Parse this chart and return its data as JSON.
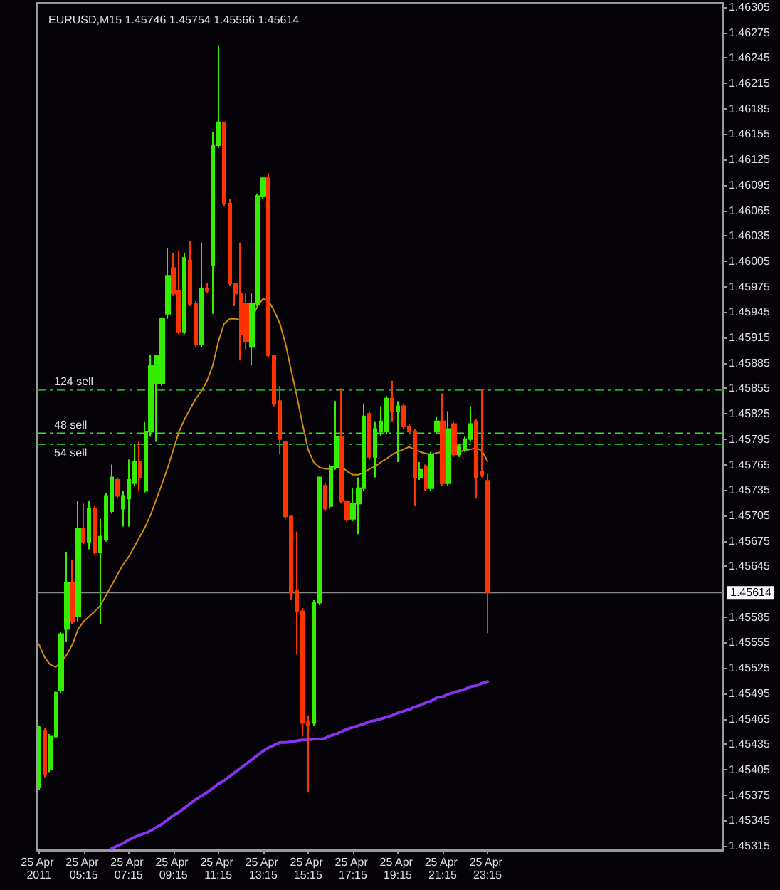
{
  "chart_data": {
    "type": "candlestick",
    "title": "EURUSD,M15 1.45746 1.45754 1.45566 1.45614",
    "x": [
      "2011-04-25T03:15",
      "2011-04-25T03:30",
      "2011-04-25T03:45",
      "2011-04-25T04:00",
      "2011-04-25T04:15",
      "2011-04-25T04:30",
      "2011-04-25T04:45",
      "2011-04-25T05:00",
      "2011-04-25T05:15",
      "2011-04-25T05:30",
      "2011-04-25T05:45",
      "2011-04-25T06:00",
      "2011-04-25T06:15",
      "2011-04-25T06:30",
      "2011-04-25T06:45",
      "2011-04-25T07:00",
      "2011-04-25T07:15",
      "2011-04-25T07:30",
      "2011-04-25T07:45",
      "2011-04-25T08:00",
      "2011-04-25T08:15",
      "2011-04-25T08:30",
      "2011-04-25T08:45",
      "2011-04-25T09:00",
      "2011-04-25T09:15",
      "2011-04-25T09:30",
      "2011-04-25T09:45",
      "2011-04-25T10:00",
      "2011-04-25T10:15",
      "2011-04-25T10:30",
      "2011-04-25T10:45",
      "2011-04-25T11:00",
      "2011-04-25T11:15",
      "2011-04-25T11:30",
      "2011-04-25T11:45",
      "2011-04-25T12:00",
      "2011-04-25T12:15",
      "2011-04-25T12:30",
      "2011-04-25T12:45",
      "2011-04-25T13:00",
      "2011-04-25T13:15",
      "2011-04-25T13:30",
      "2011-04-25T13:45",
      "2011-04-25T14:00",
      "2011-04-25T14:15",
      "2011-04-25T14:30",
      "2011-04-25T14:45",
      "2011-04-25T15:00",
      "2011-04-25T15:15",
      "2011-04-25T15:30",
      "2011-04-25T15:45",
      "2011-04-25T16:00",
      "2011-04-25T16:15",
      "2011-04-25T16:30",
      "2011-04-25T16:45",
      "2011-04-25T17:00",
      "2011-04-25T17:15",
      "2011-04-25T17:30",
      "2011-04-25T17:45",
      "2011-04-25T18:00",
      "2011-04-25T18:15",
      "2011-04-25T18:30",
      "2011-04-25T18:45",
      "2011-04-25T19:00",
      "2011-04-25T19:15",
      "2011-04-25T19:30",
      "2011-04-25T19:45",
      "2011-04-25T20:00",
      "2011-04-25T20:15",
      "2011-04-25T20:30",
      "2011-04-25T20:45",
      "2011-04-25T21:00",
      "2011-04-25T21:15",
      "2011-04-25T21:30",
      "2011-04-25T21:45",
      "2011-04-25T22:00",
      "2011-04-25T22:15",
      "2011-04-25T22:30",
      "2011-04-25T22:45",
      "2011-04-25T23:00",
      "2011-04-25T23:15"
    ],
    "ohlc": [
      [
        1.45384,
        1.45457,
        1.45381,
        1.45455
      ],
      [
        1.45451,
        1.45454,
        1.45396,
        1.45399
      ],
      [
        1.45405,
        1.45447,
        1.45402,
        1.45444
      ],
      [
        1.45444,
        1.45497,
        1.45443,
        1.45496
      ],
      [
        1.45499,
        1.45568,
        1.45496,
        1.45565
      ],
      [
        1.45571,
        1.45662,
        1.45556,
        1.45626
      ],
      [
        1.45626,
        1.45653,
        1.45577,
        1.4558
      ],
      [
        1.45586,
        1.45722,
        1.4558,
        1.45689
      ],
      [
        1.45689,
        1.45719,
        1.45671,
        1.45674
      ],
      [
        1.45674,
        1.45722,
        1.45665,
        1.45713
      ],
      [
        1.45713,
        1.45716,
        1.45659,
        1.45662
      ],
      [
        1.45662,
        1.45701,
        1.45577,
        1.4568
      ],
      [
        1.45677,
        1.45731,
        1.45674,
        1.45728
      ],
      [
        1.4571,
        1.45765,
        1.45707,
        1.4575
      ],
      [
        1.45747,
        1.4575,
        1.45725,
        1.45728
      ],
      [
        1.45713,
        1.45734,
        1.45692,
        1.45728
      ],
      [
        1.45725,
        1.45771,
        1.45692,
        1.45747
      ],
      [
        1.45743,
        1.45789,
        1.4574,
        1.45768
      ],
      [
        1.45768,
        1.45792,
        1.45734,
        1.4575
      ],
      [
        1.45734,
        1.45816,
        1.45731,
        1.45804
      ],
      [
        1.45804,
        1.45894,
        1.45798,
        1.45882
      ],
      [
        1.45861,
        1.45894,
        1.45792,
        1.45894
      ],
      [
        1.45861,
        1.45937,
        1.45858,
        1.45937
      ],
      [
        1.45943,
        1.46021,
        1.45937,
        1.45988
      ],
      [
        1.45997,
        1.46015,
        1.45964,
        1.45967
      ],
      [
        1.4597,
        1.46018,
        1.45919,
        1.45922
      ],
      [
        1.45922,
        1.46015,
        1.45919,
        1.46009
      ],
      [
        1.46006,
        1.46029,
        1.45952,
        1.45955
      ],
      [
        1.45955,
        1.45958,
        1.45904,
        1.45907
      ],
      [
        1.45907,
        1.46027,
        1.45904,
        1.45973
      ],
      [
        1.45973,
        1.45979,
        1.45967,
        1.4597
      ],
      [
        1.46,
        1.46157,
        1.45943,
        1.46142
      ],
      [
        1.46142,
        1.4626,
        1.46139,
        1.46169
      ],
      [
        1.46169,
        1.46169,
        1.4607,
        1.46073
      ],
      [
        1.46073,
        1.46079,
        1.45976,
        1.45979
      ],
      [
        1.45979,
        1.45979,
        1.45952,
        1.45967
      ],
      [
        1.45967,
        1.46027,
        1.45888,
        1.45919
      ],
      [
        1.45955,
        1.45967,
        1.45901,
        1.4591
      ],
      [
        1.45904,
        1.45967,
        1.45882,
        1.45955
      ],
      [
        1.45955,
        1.46085,
        1.45952,
        1.46082
      ],
      [
        1.46082,
        1.46103,
        1.46079,
        1.46103
      ],
      [
        1.46103,
        1.46109,
        1.45891,
        1.45894
      ],
      [
        1.45894,
        1.45894,
        1.45834,
        1.45837
      ],
      [
        1.4584,
        1.45858,
        1.45777,
        1.45795
      ],
      [
        1.45792,
        1.45792,
        1.45701,
        1.45704
      ],
      [
        1.45704,
        1.45704,
        1.45605,
        1.45614
      ],
      [
        1.45617,
        1.45686,
        1.45541,
        1.45592
      ],
      [
        1.45592,
        1.45596,
        1.45444,
        1.4546
      ],
      [
        1.45461,
        1.45469,
        1.45378,
        1.45458
      ],
      [
        1.4546,
        1.45605,
        1.45457,
        1.45602
      ],
      [
        1.45602,
        1.4575,
        1.45599,
        1.4575
      ],
      [
        1.4574,
        1.45743,
        1.4571,
        1.45713
      ],
      [
        1.45716,
        1.45765,
        1.45713,
        1.45762
      ],
      [
        1.45762,
        1.4584,
        1.45759,
        1.45798
      ],
      [
        1.45798,
        1.45855,
        1.45719,
        1.45722
      ],
      [
        1.45722,
        1.45722,
        1.45698,
        1.457
      ],
      [
        1.45701,
        1.45737,
        1.45698,
        1.45719
      ],
      [
        1.45719,
        1.4575,
        1.45683,
        1.45737
      ],
      [
        1.45737,
        1.45837,
        1.45734,
        1.45822
      ],
      [
        1.45825,
        1.45828,
        1.45771,
        1.45774
      ],
      [
        1.45774,
        1.45816,
        1.4575,
        1.45807
      ],
      [
        1.45804,
        1.45834,
        1.45798,
        1.45816
      ],
      [
        1.45804,
        1.45846,
        1.45801,
        1.45843
      ],
      [
        1.45843,
        1.45864,
        1.45816,
        1.45828
      ],
      [
        1.45828,
        1.4584,
        1.45768,
        1.45834
      ],
      [
        1.45834,
        1.45837,
        1.45807,
        1.4581
      ],
      [
        1.4581,
        1.45813,
        1.45801,
        1.45804
      ],
      [
        1.45804,
        1.45807,
        1.45716,
        1.4575
      ],
      [
        1.4575,
        1.45768,
        1.45747,
        1.45759
      ],
      [
        1.45762,
        1.45765,
        1.45734,
        1.45737
      ],
      [
        1.45737,
        1.4578,
        1.45734,
        1.45777
      ],
      [
        1.45804,
        1.45822,
        1.45801,
        1.45816
      ],
      [
        1.45816,
        1.45849,
        1.4574,
        1.45743
      ],
      [
        1.45743,
        1.45828,
        1.4574,
        1.45807
      ],
      [
        1.45813,
        1.45816,
        1.45774,
        1.45777
      ],
      [
        1.45777,
        1.45789,
        1.45774,
        1.45787
      ],
      [
        1.45783,
        1.45798,
        1.4578,
        1.45795
      ],
      [
        1.45795,
        1.45834,
        1.45792,
        1.45813
      ],
      [
        1.45816,
        1.45819,
        1.45725,
        1.4575
      ],
      [
        1.45757,
        1.45853,
        1.4575,
        1.45753
      ],
      [
        1.45746,
        1.45754,
        1.45566,
        1.45614
      ]
    ],
    "colors": [
      "#33ee00",
      "#ff3300",
      "#33ee00",
      "#33ee00",
      "#33ee00",
      "#33ee00",
      "#ff3300",
      "#33ee00",
      "#ff3300",
      "#33ee00",
      "#ff3300",
      "#33ee00",
      "#33ee00",
      "#33ee00",
      "#ff3300",
      "#33ee00",
      "#33ee00",
      "#33ee00",
      "#ff3300",
      "#33ee00",
      "#33ee00",
      "#33ee00",
      "#33ee00",
      "#33ee00",
      "#ff3300",
      "#ff3300",
      "#33ee00",
      "#ff3300",
      "#ff3300",
      "#33ee00",
      "#ff3300",
      "#33ee00",
      "#33ee00",
      "#ff3300",
      "#ff3300",
      "#ff3300",
      "#ff3300",
      "#ff3300",
      "#33ee00",
      "#33ee00",
      "#33ee00",
      "#ff3300",
      "#ff3300",
      "#ff3300",
      "#ff3300",
      "#ff3300",
      "#ff3300",
      "#ff3300",
      "#ff3300",
      "#33ee00",
      "#33ee00",
      "#ff3300",
      "#33ee00",
      "#33ee00",
      "#ff3300",
      "#ff3300",
      "#33ee00",
      "#33ee00",
      "#33ee00",
      "#ff3300",
      "#33ee00",
      "#33ee00",
      "#33ee00",
      "#ff3300",
      "#33ee00",
      "#ff3300",
      "#ff3300",
      "#ff3300",
      "#33ee00",
      "#ff3300",
      "#33ee00",
      "#33ee00",
      "#ff3300",
      "#33ee00",
      "#ff3300",
      "#33ee00",
      "#33ee00",
      "#33ee00",
      "#ff3300",
      "#ff3300",
      "#ff3300"
    ],
    "series": [
      {
        "type": "line",
        "color": "#d08a10",
        "values": [
          1.45553,
          1.45538,
          1.45529,
          1.45526,
          1.45532,
          1.45541,
          1.45553,
          1.45571,
          1.4558,
          1.45586,
          1.45592,
          1.45599,
          1.45611,
          1.45623,
          1.45635,
          1.45647,
          1.45656,
          1.45668,
          1.4568,
          1.45692,
          1.45707,
          1.45725,
          1.45743,
          1.45762,
          1.45783,
          1.45804,
          1.45819,
          1.45831,
          1.45843,
          1.45852,
          1.45864,
          1.45882,
          1.4591,
          1.45931,
          1.45937,
          1.45937,
          1.45936,
          1.45936,
          1.45938,
          1.45952,
          1.45961,
          1.45958,
          1.45946,
          1.45931,
          1.45907,
          1.45876,
          1.45846,
          1.45813,
          1.45783,
          1.45768,
          1.45762,
          1.4576,
          1.4576,
          1.45765,
          1.45762,
          1.45757,
          1.45753,
          1.45753,
          1.45756,
          1.4576,
          1.45763,
          1.45768,
          1.45772,
          1.45777,
          1.4578,
          1.45783,
          1.45786,
          1.45783,
          1.4578,
          1.45778,
          1.45777,
          1.45779,
          1.4578,
          1.4578,
          null,
          1.4578,
          1.45782,
          1.45783,
          1.45785,
          1.45781,
          1.45769
        ]
      },
      {
        "type": "line",
        "color": "#8833ee",
        "values": [
          null,
          null,
          null,
          null,
          null,
          null,
          null,
          null,
          null,
          null,
          null,
          null,
          null,
          1.45312,
          1.45315,
          1.45318,
          1.45322,
          1.45325,
          1.45328,
          1.4533,
          1.45333,
          1.45337,
          1.45341,
          1.45346,
          1.45351,
          1.45355,
          1.4536,
          1.45365,
          1.4537,
          1.45374,
          1.45378,
          1.45383,
          1.45388,
          1.45392,
          1.45397,
          1.45402,
          1.45407,
          1.45412,
          1.45417,
          1.45422,
          1.45427,
          1.45431,
          1.45434,
          1.45437,
          1.45437,
          1.45438,
          1.45439,
          1.4544,
          1.4544,
          1.45441,
          1.45441,
          1.45442,
          1.45445,
          1.45447,
          1.4545,
          1.45453,
          1.45455,
          1.45457,
          1.45459,
          1.45462,
          1.45463,
          1.45465,
          1.45467,
          1.45469,
          1.45472,
          1.45474,
          1.45476,
          1.45479,
          1.45481,
          1.45484,
          1.45486,
          1.4549,
          1.45491,
          1.45494,
          1.45496,
          1.45498,
          1.455,
          1.45503,
          1.45504,
          1.45507,
          1.45509
        ]
      }
    ],
    "xlim": [
      "2011-04-25T03:10",
      "2011-04-26T09:45"
    ],
    "xticks": [
      {
        "value": "2011-04-25T03:15",
        "label": "25 Apr 2011"
      },
      {
        "value": "2011-04-25T05:15",
        "label": "25 Apr 05:15"
      },
      {
        "value": "2011-04-25T07:15",
        "label": "25 Apr 07:15"
      },
      {
        "value": "2011-04-25T09:15",
        "label": "25 Apr 09:15"
      },
      {
        "value": "2011-04-25T11:15",
        "label": "25 Apr 11:15"
      },
      {
        "value": "2011-04-25T13:15",
        "label": "25 Apr 13:15"
      },
      {
        "value": "2011-04-25T15:15",
        "label": "25 Apr 15:15"
      },
      {
        "value": "2011-04-25T17:15",
        "label": "25 Apr 17:15"
      },
      {
        "value": "2011-04-25T19:15",
        "label": "25 Apr 19:15"
      },
      {
        "value": "2011-04-25T21:15",
        "label": "25 Apr 21:15"
      },
      {
        "value": "2011-04-25T23:15",
        "label": "25 Apr 23:15"
      }
    ],
    "ylim": [
      1.4531,
      1.4631
    ],
    "yticks": [
      1.45315,
      1.45345,
      1.45375,
      1.45405,
      1.45435,
      1.45465,
      1.45495,
      1.45525,
      1.45555,
      1.45585,
      1.45645,
      1.45675,
      1.45705,
      1.45735,
      1.45765,
      1.45795,
      1.45825,
      1.45855,
      1.45885,
      1.45915,
      1.45945,
      1.45975,
      1.46005,
      1.46035,
      1.46065,
      1.46095,
      1.46125,
      1.46155,
      1.46185,
      1.46215,
      1.46245,
      1.46275,
      1.46305
    ],
    "ref_lines": [
      {
        "axis": "y",
        "value": 1.45853,
        "label": "124 sell",
        "color": "#22aa22",
        "line_style": "dashed"
      },
      {
        "axis": "y",
        "value": 1.45802,
        "label": "48 sell",
        "color": "#33dd33",
        "line_style": "dashed"
      },
      {
        "axis": "y",
        "value": 1.45789,
        "label": "54 sell",
        "color": "#22aa22",
        "line_style": "dashed"
      },
      {
        "axis": "y",
        "value": 1.45614,
        "label": "1.45614",
        "color": "#888888",
        "line_style": "solid"
      }
    ],
    "marker": "none"
  }
}
